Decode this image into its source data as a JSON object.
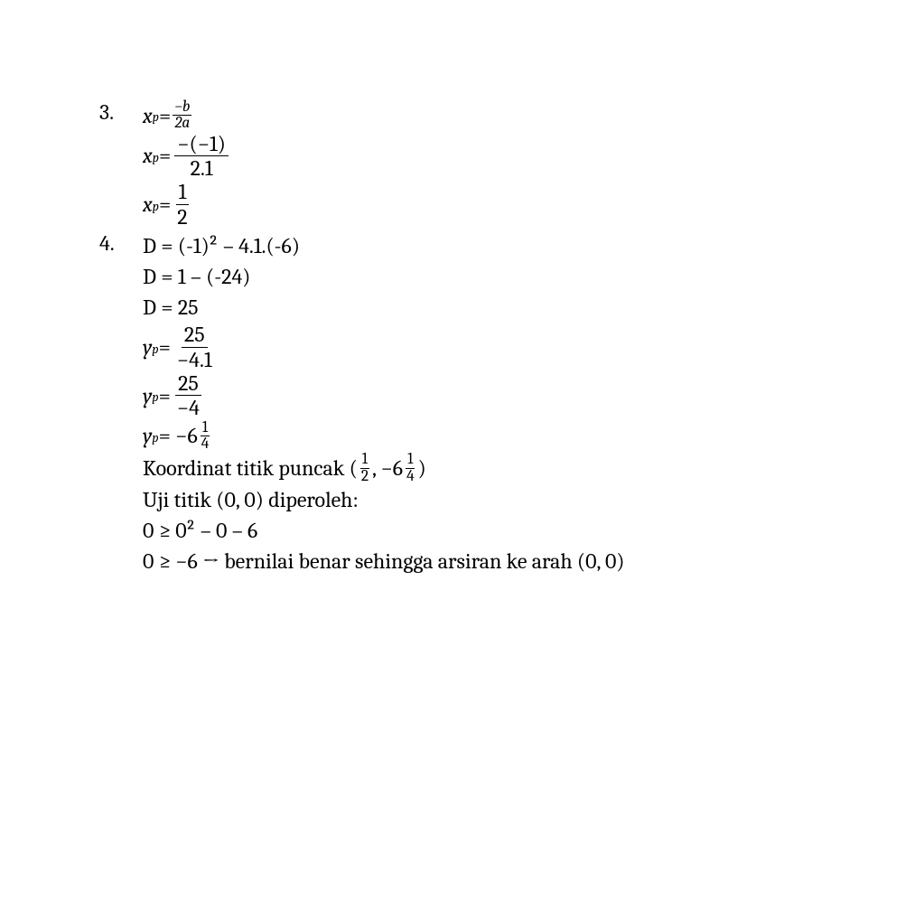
{
  "item3": {
    "number": "3.",
    "line1": {
      "lhs_var": "x",
      "lhs_sub": "p",
      "eq": " = ",
      "frac_top": "−b",
      "frac_bot": "2a"
    },
    "line2": {
      "lhs_var": "x",
      "lhs_sub": "p",
      "eq": " = ",
      "frac_top": "−(−1)",
      "frac_bot": "2.1"
    },
    "line3": {
      "lhs_var": "x",
      "lhs_sub": "p",
      "eq": " = ",
      "frac_top": "1",
      "frac_bot": "2"
    }
  },
  "item4": {
    "number": "4.",
    "line1": "D = (-1)² – 4.1.(-6)",
    "line2": "D = 1 – (-24)",
    "line3": "D = 25",
    "line4": {
      "lhs_var": "y",
      "lhs_sub": "p",
      "eq": " = ",
      "frac_top": "25",
      "frac_bot": "−4.1"
    },
    "line5": {
      "lhs_var": "y",
      "lhs_sub": "p",
      "eq": " = ",
      "frac_top": "25",
      "frac_bot": "−4"
    },
    "line6": {
      "lhs_var": "y",
      "lhs_sub": "p",
      "mid": " = −6",
      "frac_top": "1",
      "frac_bot": "4"
    },
    "line7": {
      "pre": "Koordinat titik puncak (",
      "f1_top": "1",
      "f1_bot": "2",
      "mid": ", −6",
      "f2_top": "1",
      "f2_bot": "4",
      "post": ")"
    },
    "line8": "Uji titik (0, 0) diperoleh:",
    "line9": "0 ≥ 0² – 0 – 6",
    "line10": "0 ≥ −6 → bernilai benar sehingga arsiran ke arah (0, 0)"
  }
}
